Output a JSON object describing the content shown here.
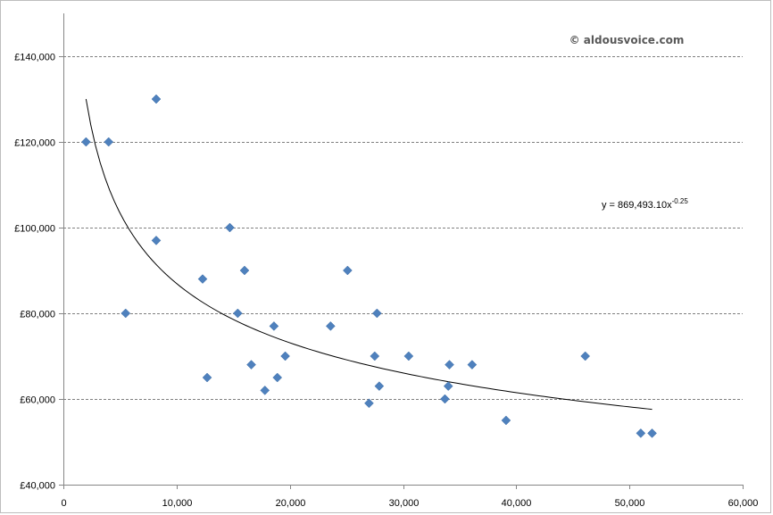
{
  "chart_data": {
    "type": "scatter",
    "title": "",
    "xlabel": "",
    "ylabel": "",
    "xlim": [
      0,
      60000
    ],
    "ylim": [
      40000,
      150000
    ],
    "x_ticks": [
      0,
      10000,
      20000,
      30000,
      40000,
      50000,
      60000
    ],
    "x_tick_labels": [
      "0",
      "10,000",
      "20,000",
      "30,000",
      "40,000",
      "50,000",
      "60,000"
    ],
    "y_ticks": [
      40000,
      60000,
      80000,
      100000,
      120000,
      140000
    ],
    "y_tick_labels": [
      "£40,000",
      "£60,000",
      "£80,000",
      "£100,000",
      "£120,000",
      "£140,000"
    ],
    "grid": "horizontal dashed",
    "marker": "diamond",
    "marker_color": "#4F81BD",
    "series": [
      {
        "points": [
          {
            "x": 2000,
            "y": 120000
          },
          {
            "x": 4000,
            "y": 120000
          },
          {
            "x": 5500,
            "y": 80000
          },
          {
            "x": 8200,
            "y": 130000
          },
          {
            "x": 8200,
            "y": 97000
          },
          {
            "x": 12300,
            "y": 88000
          },
          {
            "x": 12700,
            "y": 65000
          },
          {
            "x": 14700,
            "y": 100000
          },
          {
            "x": 15400,
            "y": 80000
          },
          {
            "x": 16000,
            "y": 90000
          },
          {
            "x": 16600,
            "y": 68000
          },
          {
            "x": 17800,
            "y": 62000
          },
          {
            "x": 18600,
            "y": 77000
          },
          {
            "x": 18900,
            "y": 65000
          },
          {
            "x": 19600,
            "y": 70000
          },
          {
            "x": 23600,
            "y": 77000
          },
          {
            "x": 25100,
            "y": 90000
          },
          {
            "x": 27000,
            "y": 59000
          },
          {
            "x": 27500,
            "y": 70000
          },
          {
            "x": 27700,
            "y": 80000
          },
          {
            "x": 27900,
            "y": 63000
          },
          {
            "x": 30500,
            "y": 70000
          },
          {
            "x": 33700,
            "y": 60000
          },
          {
            "x": 34000,
            "y": 63000
          },
          {
            "x": 34100,
            "y": 68000
          },
          {
            "x": 36100,
            "y": 68000
          },
          {
            "x": 39100,
            "y": 55000
          },
          {
            "x": 46100,
            "y": 70000
          },
          {
            "x": 51000,
            "y": 52000
          },
          {
            "x": 52000,
            "y": 52000
          }
        ]
      }
    ],
    "trendline": {
      "type": "power",
      "coefficient": 869493.1,
      "exponent": -0.25,
      "x_range": [
        2000,
        52000
      ],
      "color": "#000000",
      "label": {
        "base": "y = 869,493.10x",
        "superscript": "-0.25"
      }
    },
    "annotations": [
      {
        "text": "© aldousvoice.com"
      }
    ]
  }
}
